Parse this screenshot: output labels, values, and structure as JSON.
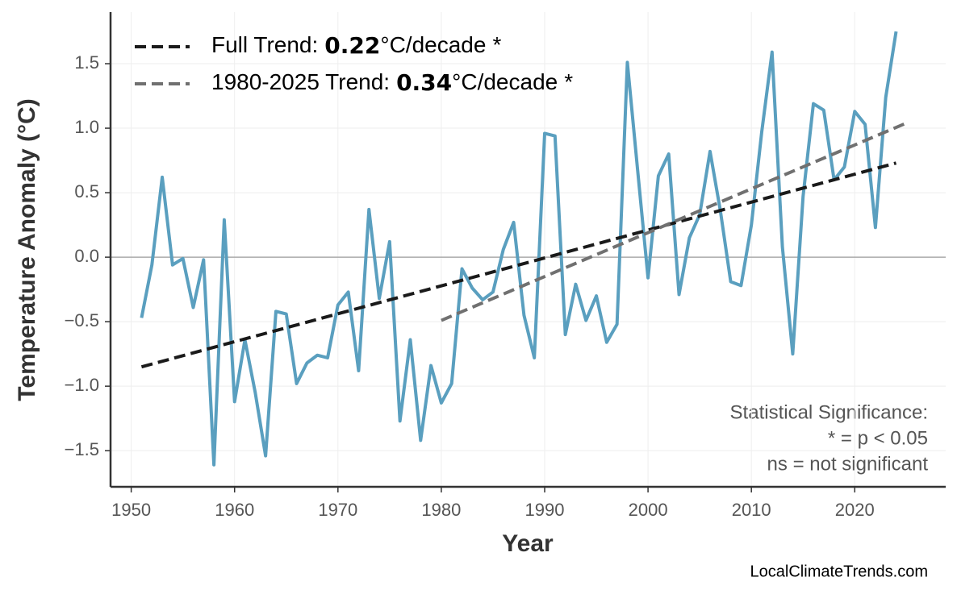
{
  "chart_data": {
    "type": "line",
    "xlabel": "Year",
    "ylabel": "Temperature Anomaly (°C)",
    "xlim": [
      1948,
      2028.8
    ],
    "ylim": [
      -1.78,
      1.9
    ],
    "xticks": [
      1950,
      1960,
      1970,
      1980,
      1990,
      2000,
      2010,
      2020
    ],
    "yticks": [
      {
        "value": -1.5,
        "label": "−1.5"
      },
      {
        "value": -1.0,
        "label": "−1.0"
      },
      {
        "value": -0.5,
        "label": "−0.5"
      },
      {
        "value": 0,
        "label": "0.0"
      },
      0.5,
      {
        "value": 1.0,
        "label": "1.0"
      },
      1.5
    ],
    "grid": true,
    "reference_line": 0,
    "legend_position": "upper left",
    "series": [
      {
        "color": "#5a9fbf",
        "x": [
          1951,
          1952,
          1953,
          1954,
          1955,
          1956,
          1957,
          1958,
          1959,
          1960,
          1961,
          1962,
          1963,
          1964,
          1965,
          1966,
          1967,
          1968,
          1969,
          1970,
          1971,
          1972,
          1973,
          1974,
          1975,
          1976,
          1977,
          1978,
          1979,
          1980,
          1981,
          1982,
          1983,
          1984,
          1985,
          1986,
          1987,
          1988,
          1989,
          1990,
          1991,
          1992,
          1993,
          1994,
          1995,
          1996,
          1997,
          1998,
          1999,
          2000,
          2001,
          2002,
          2003,
          2004,
          2005,
          2006,
          2007,
          2008,
          2009,
          2010,
          2011,
          2012,
          2013,
          2014,
          2015,
          2016,
          2017,
          2018,
          2019,
          2020,
          2021,
          2022,
          2023,
          2024
        ],
        "values": [
          -0.47,
          -0.06,
          0.62,
          -0.06,
          -0.01,
          -0.39,
          -0.02,
          -1.61,
          0.29,
          -1.12,
          -0.64,
          -1.05,
          -1.54,
          -0.42,
          -0.44,
          -0.98,
          -0.82,
          -0.76,
          -0.78,
          -0.37,
          -0.27,
          -0.88,
          0.37,
          -0.32,
          0.12,
          -1.27,
          -0.64,
          -1.42,
          -0.84,
          -1.13,
          -0.98,
          -0.09,
          -0.24,
          -0.33,
          -0.27,
          0.06,
          0.27,
          -0.45,
          -0.78,
          0.96,
          0.94,
          -0.6,
          -0.21,
          -0.49,
          -0.3,
          -0.66,
          -0.52,
          1.51,
          0.67,
          -0.16,
          0.63,
          0.8,
          -0.29,
          0.15,
          0.33,
          0.82,
          0.36,
          -0.19,
          -0.22,
          0.25,
          0.97,
          1.59,
          0.08,
          -0.75,
          0.47,
          1.19,
          1.14,
          0.6,
          0.7,
          1.13,
          1.03,
          0.23,
          1.24,
          1.75
        ]
      },
      {
        "name": "Full Trend:",
        "slope": 0.22,
        "unit": "°C/decade",
        "significance": "*",
        "color": "#1a1a1a",
        "dashed": true,
        "x": [
          1951,
          2024
        ],
        "values": [
          -0.85,
          0.73
        ]
      },
      {
        "name": "1980-2025 Trend:",
        "slope": 0.34,
        "unit": "°C/decade",
        "significance": "*",
        "color": "#707070",
        "dashed": true,
        "x": [
          1980,
          2025
        ],
        "values": [
          -0.49,
          1.04
        ]
      }
    ],
    "annotations": [
      "Statistical Significance:",
      "* = p < 0.05",
      "ns = not significant"
    ],
    "source": "LocalClimateTrends.com"
  }
}
